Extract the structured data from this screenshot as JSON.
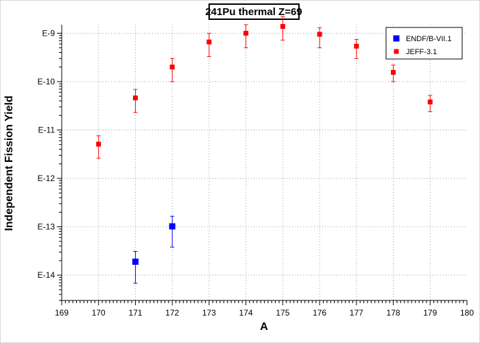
{
  "chart_data": {
    "type": "scatter",
    "title": "241Pu thermal Z=69",
    "xlabel": "A",
    "ylabel": "Independent Fission Yield",
    "xlim": [
      169,
      180
    ],
    "ylim": [
      3e-15,
      1.5e-09
    ],
    "yscale": "log",
    "grid": true,
    "legend_position": "top-right",
    "x_ticks": [
      169,
      170,
      171,
      172,
      173,
      174,
      175,
      176,
      177,
      178,
      179,
      180
    ],
    "y_ticks": [
      {
        "value": 1e-14,
        "label": "E-14"
      },
      {
        "value": 1e-13,
        "label": "E-13"
      },
      {
        "value": 1e-12,
        "label": "E-12"
      },
      {
        "value": 1e-11,
        "label": "E-11"
      },
      {
        "value": 1e-10,
        "label": "E-10"
      },
      {
        "value": 1e-09,
        "label": "E-9"
      }
    ],
    "series": [
      {
        "name": "ENDF/B-VII.1",
        "color": "#0000ff",
        "marker": "square",
        "points": [
          {
            "x": 171,
            "y": 1.9e-14,
            "y_low": 6.8e-15,
            "y_high": 3.1e-14
          },
          {
            "x": 172,
            "y": 1.02e-13,
            "y_low": 3.8e-14,
            "y_high": 1.65e-13
          }
        ]
      },
      {
        "name": "JEFF-3.1",
        "color": "#ff0000",
        "marker": "square",
        "points": [
          {
            "x": 170,
            "y": 5.1e-12,
            "y_low": 2.6e-12,
            "y_high": 7.6e-12
          },
          {
            "x": 171,
            "y": 4.6e-11,
            "y_low": 2.3e-11,
            "y_high": 6.9e-11
          },
          {
            "x": 172,
            "y": 2e-10,
            "y_low": 1e-10,
            "y_high": 3e-10
          },
          {
            "x": 173,
            "y": 6.6e-10,
            "y_low": 3.3e-10,
            "y_high": 1e-09
          },
          {
            "x": 174,
            "y": 1e-09,
            "y_low": 5e-10,
            "y_high": 1.5e-09
          },
          {
            "x": 175,
            "y": 1.38e-09,
            "y_low": 7.2e-10,
            "y_high": 2.2e-09
          },
          {
            "x": 176,
            "y": 9.5e-10,
            "y_low": 5e-10,
            "y_high": 1.3e-09
          },
          {
            "x": 177,
            "y": 5.4e-10,
            "y_low": 3e-10,
            "y_high": 7.4e-10
          },
          {
            "x": 178,
            "y": 1.55e-10,
            "y_low": 1e-10,
            "y_high": 2.2e-10
          },
          {
            "x": 179,
            "y": 3.8e-11,
            "y_low": 2.4e-11,
            "y_high": 5.2e-11
          }
        ]
      }
    ]
  }
}
